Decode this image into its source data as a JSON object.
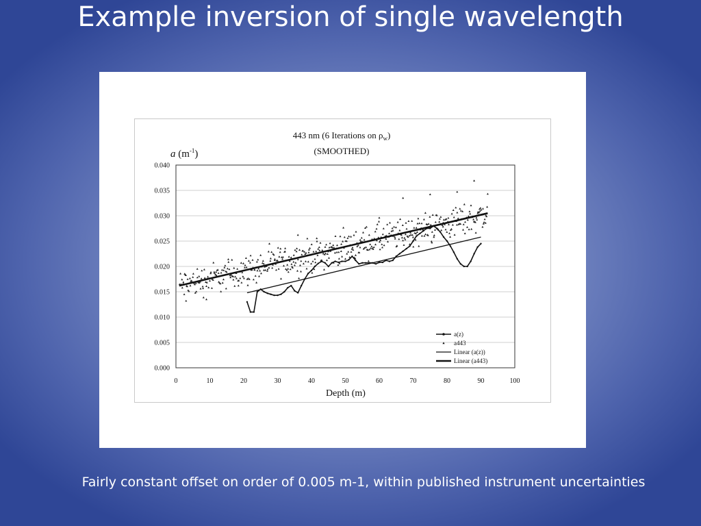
{
  "slide": {
    "title": "Example inversion of single wavelength",
    "caption": "Fairly constant offset on order of 0.005 m-1, within published instrument uncertainties"
  },
  "chart_data": {
    "type": "scatter",
    "title_line1": "443 nm (6 Iterations on ρ",
    "title_sub": "w",
    "title_line1_end": ")",
    "title_line2": "(SMOOTHED)",
    "ylabel_italic": "a",
    "ylabel_unit": " (m",
    "ylabel_exp": "-1",
    "ylabel_close": ")",
    "xlabel": "Depth (m)",
    "xlim": [
      0,
      100
    ],
    "ylim": [
      0,
      0.04
    ],
    "xticks": [
      "0",
      "10",
      "20",
      "30",
      "40",
      "50",
      "60",
      "70",
      "80",
      "90",
      "100"
    ],
    "yticks": [
      "0.000",
      "0.005",
      "0.010",
      "0.015",
      "0.020",
      "0.025",
      "0.030",
      "0.035",
      "0.040"
    ],
    "grid": true,
    "legend_position": "bottom-right",
    "legend": [
      "a(z)",
      "a443",
      "Linear (a(z))",
      "Linear (a443)"
    ],
    "series": [
      {
        "name": "a(z)",
        "x": [
          21,
          22,
          23,
          24,
          25,
          26,
          27,
          28,
          29,
          30,
          31,
          32,
          33,
          34,
          35,
          36,
          37,
          38,
          39,
          40,
          41,
          42,
          43,
          44,
          45,
          46,
          47,
          48,
          49,
          50,
          51,
          52,
          53,
          54,
          55,
          56,
          57,
          58,
          59,
          60,
          61,
          62,
          63,
          64,
          65,
          66,
          67,
          68,
          69,
          70,
          71,
          72,
          73,
          74,
          75,
          76,
          77,
          78,
          79,
          80,
          81,
          82,
          83,
          84,
          85,
          86,
          87,
          88,
          89,
          90
        ],
        "y": [
          0.013,
          0.011,
          0.011,
          0.015,
          0.0155,
          0.015,
          0.0147,
          0.0145,
          0.0143,
          0.0143,
          0.0145,
          0.015,
          0.0158,
          0.0162,
          0.0152,
          0.0148,
          0.0162,
          0.0175,
          0.0186,
          0.0192,
          0.02,
          0.0206,
          0.021,
          0.0207,
          0.02,
          0.0207,
          0.021,
          0.0208,
          0.021,
          0.021,
          0.0213,
          0.022,
          0.0212,
          0.0205,
          0.0207,
          0.0207,
          0.0207,
          0.0207,
          0.0205,
          0.0208,
          0.0208,
          0.0212,
          0.021,
          0.0212,
          0.022,
          0.0225,
          0.023,
          0.0235,
          0.024,
          0.025,
          0.026,
          0.0265,
          0.027,
          0.0275,
          0.0275,
          0.028,
          0.0275,
          0.0268,
          0.0258,
          0.025,
          0.024,
          0.0228,
          0.0215,
          0.0205,
          0.02,
          0.02,
          0.021,
          0.0225,
          0.0238,
          0.0245
        ]
      },
      {
        "name": "a443",
        "x_range": [
          1,
          92
        ],
        "trend": {
          "intercept": 0.0162,
          "slope": 0.000155
        },
        "spread": 0.0045,
        "outliers": [
          {
            "x": 3,
            "y": 0.0132
          },
          {
            "x": 9,
            "y": 0.0135
          },
          {
            "x": 36,
            "y": 0.0262
          },
          {
            "x": 60,
            "y": 0.0296
          },
          {
            "x": 67,
            "y": 0.0335
          },
          {
            "x": 75,
            "y": 0.0342
          },
          {
            "x": 83,
            "y": 0.0347
          },
          {
            "x": 88,
            "y": 0.0369
          },
          {
            "x": 92,
            "y": 0.0343
          }
        ]
      }
    ],
    "trendlines": [
      {
        "name": "Linear (a(z))",
        "x": [
          21,
          90
        ],
        "y": [
          0.0148,
          0.0258
        ]
      },
      {
        "name": "Linear (a443)",
        "x": [
          1,
          92
        ],
        "y": [
          0.0162,
          0.0305
        ]
      }
    ]
  }
}
